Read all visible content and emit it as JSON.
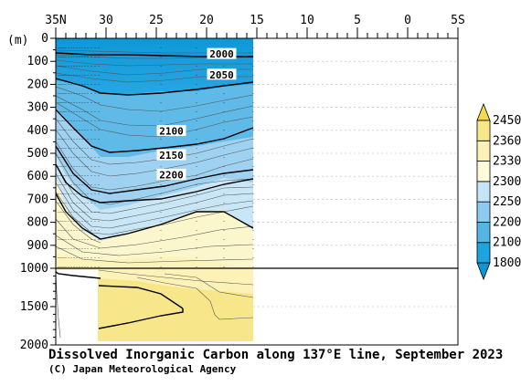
{
  "chart_data": {
    "type": "heatmap",
    "title": "Dissolved Inorganic Carbon along 137°E line, September 2023",
    "credit": "(C) Japan Meteorological Agency",
    "ylabel": "(m)",
    "x_ticks": [
      {
        "value": 35,
        "label": "35N"
      },
      {
        "value": 30,
        "label": "30"
      },
      {
        "value": 25,
        "label": "25"
      },
      {
        "value": 20,
        "label": "20"
      },
      {
        "value": 15,
        "label": "15"
      },
      {
        "value": 10,
        "label": "10"
      },
      {
        "value": 5,
        "label": "5"
      },
      {
        "value": 0,
        "label": "0"
      },
      {
        "value": -5,
        "label": "5S"
      }
    ],
    "xlim": [
      35,
      -5
    ],
    "y_ticks_upper": [
      0,
      100,
      200,
      300,
      400,
      500,
      600,
      700,
      800,
      900,
      1000
    ],
    "y_ticks_lower": [
      1500,
      2000
    ],
    "ylim": [
      0,
      2000
    ],
    "y_break": 1000,
    "data_lat_range": [
      34,
      15
    ],
    "contour_labels": [
      {
        "value": "2000",
        "lat": 18.5,
        "depth": 70
      },
      {
        "value": "2050",
        "lat": 18.5,
        "depth": 160
      },
      {
        "value": "2100",
        "lat": 23.5,
        "depth": 405
      },
      {
        "value": "2150",
        "lat": 23.5,
        "depth": 510
      },
      {
        "value": "2200",
        "lat": 23.5,
        "depth": 595
      }
    ],
    "colorbar": {
      "levels": [
        "1800",
        "2100",
        "2200",
        "2250",
        "2300",
        "2330",
        "2360",
        "2450"
      ],
      "colors": [
        "#1ea3e0",
        "#55b6e6",
        "#8ccbef",
        "#c5e4f6",
        "#fdfbd9",
        "#fcf2b6",
        "#f8e68b"
      ],
      "under_color": "#0b96d6",
      "over_color": "#f5da4a"
    }
  }
}
